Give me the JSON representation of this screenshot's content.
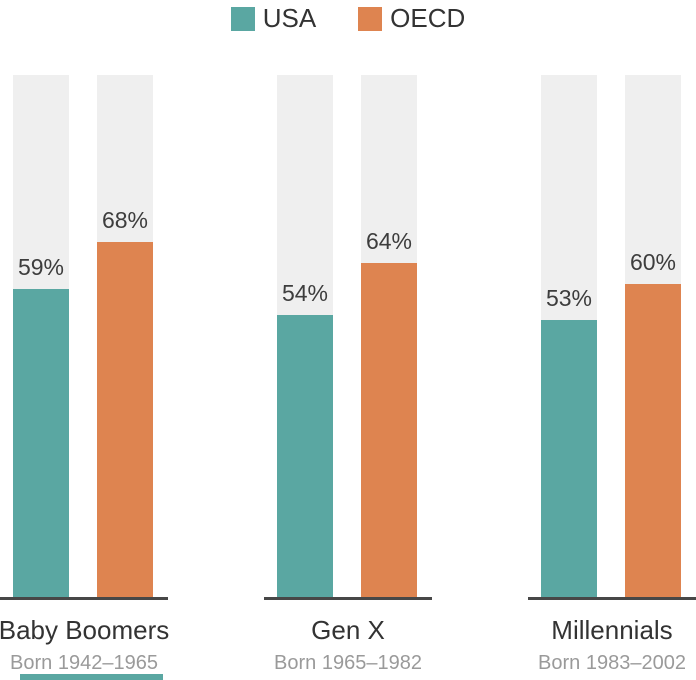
{
  "legend": {
    "items": [
      {
        "label": "USA",
        "color": "#5aa7a2"
      },
      {
        "label": "OECD",
        "color": "#de8450"
      }
    ]
  },
  "chart_data": {
    "type": "bar",
    "title": "",
    "categories": [
      "Baby Boomers",
      "Gen X",
      "Millennials"
    ],
    "category_subtitles": [
      "Born 1942–1965",
      "Born 1965–1982",
      "Born 1983–2002"
    ],
    "series": [
      {
        "name": "USA",
        "color": "#5aa7a2",
        "values": [
          59,
          54,
          53
        ]
      },
      {
        "name": "OECD",
        "color": "#de8450",
        "values": [
          68,
          64,
          60
        ]
      }
    ],
    "value_label_format": "{value}%",
    "value_labels": [
      [
        "59%",
        "68%"
      ],
      [
        "54%",
        "64%"
      ],
      [
        "53%",
        "60%"
      ]
    ],
    "ylim": [
      0,
      100
    ],
    "grid": false,
    "legend_position": "top-center",
    "track_color": "#efefef",
    "axis_line_color": "#474747"
  },
  "colors": {
    "value_label": "#3d3d3d",
    "category_title": "#333333",
    "category_subtitle": "#9a9a9a",
    "background": "#ffffff"
  },
  "footer_fragment": {
    "color": "#5aa7a2"
  }
}
